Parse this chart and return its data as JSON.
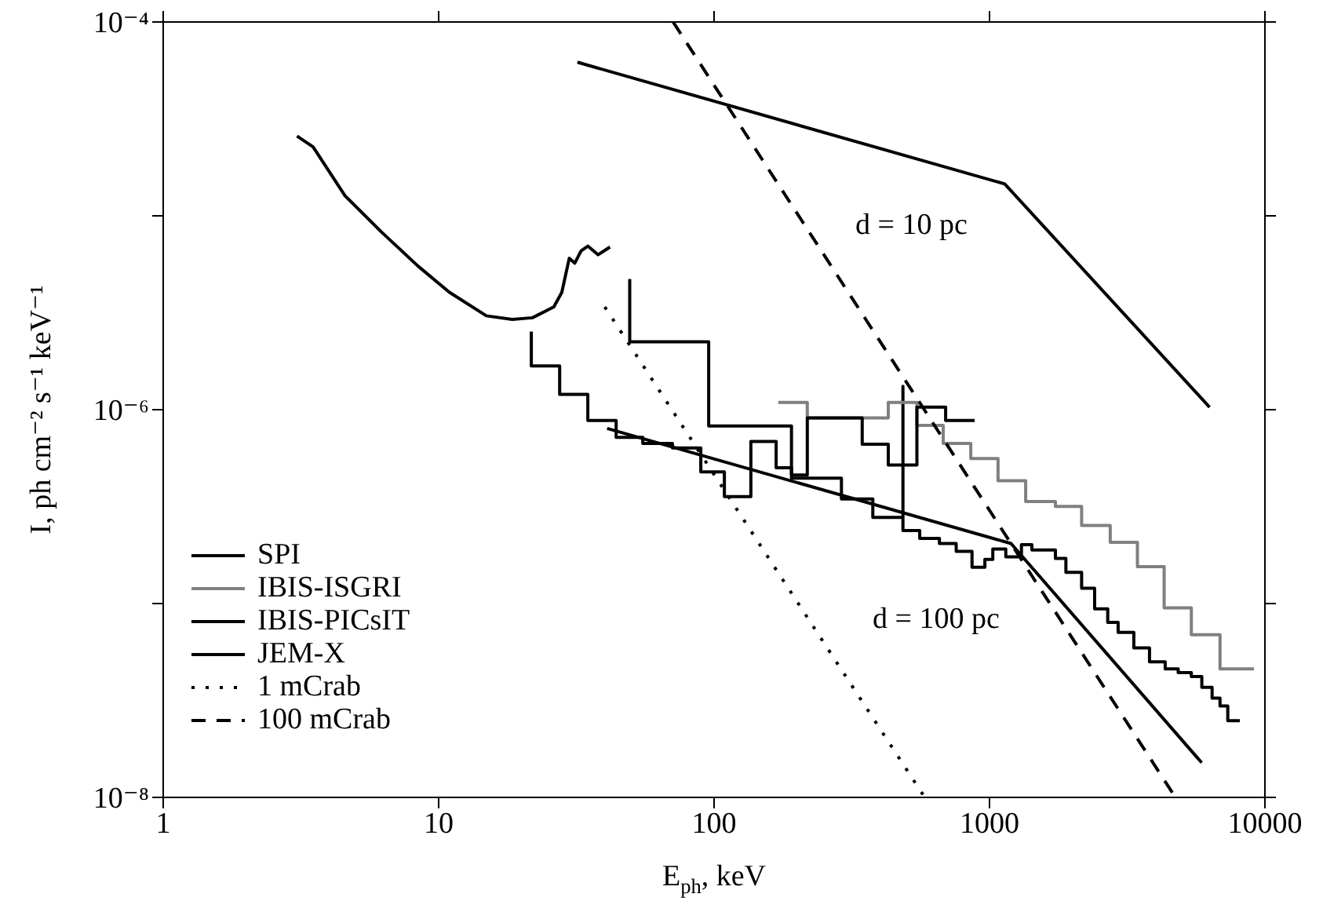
{
  "chart_data": {
    "type": "line",
    "xlabel": "E$_{ph}$, keV",
    "ylabel": "I, ph cm⁻² s⁻¹ keV⁻¹",
    "log": "xy",
    "xlim": [
      1,
      10000
    ],
    "xticks": [
      1,
      10,
      100,
      1000,
      10000
    ],
    "ylim": [
      1e-08,
      0.0001
    ],
    "yticks": [
      {
        "value": 1e-08,
        "label": "10⁻⁸"
      },
      {
        "value": 1e-07,
        "label": null
      },
      {
        "value": 1e-06,
        "label": "10⁻⁶"
      },
      {
        "value": 1e-05,
        "label": null
      },
      {
        "value": 0.0001,
        "label": "10⁻⁴"
      }
    ],
    "grid": false,
    "legend": "bottom left",
    "marker": "none",
    "annotations": [
      "d = 10 pc",
      "d = 100 pc"
    ],
    "series": [
      {
        "name": "SPI",
        "type": "step",
        "color": "#000000",
        "line_style": "solid",
        "x": [
          21.7,
          21.7,
          27.5,
          34.8,
          44.1,
          55.1,
          70.6,
          89.5,
          109,
          136,
          168,
          191,
          290,
          377,
          485,
          485,
          558,
          658,
          757,
          864,
          962,
          1028,
          1146,
          1306,
          1425,
          1735,
          1894,
          2160,
          2408,
          2687,
          2931,
          3342,
          3810,
          4344,
          4843,
          5405,
          5900,
          6430,
          6870,
          7330,
          8110
        ],
        "values": [
          2.53e-06,
          1.68e-06,
          1.2e-06,
          8.8e-07,
          7.2e-07,
          6.7e-07,
          6.35e-07,
          4.78e-07,
          3.56e-07,
          6.85e-07,
          5.02e-07,
          4.43e-07,
          3.46e-07,
          2.78e-07,
          1.32e-06,
          2.38e-07,
          2.17e-07,
          2.04e-07,
          1.86e-07,
          1.54e-07,
          1.69e-07,
          1.91e-07,
          1.74e-07,
          2.01e-07,
          1.89e-07,
          1.71e-07,
          1.45e-07,
          1.2e-07,
          9.4e-08,
          8e-08,
          7.1e-08,
          5.9e-08,
          5e-08,
          4.6e-08,
          4.4e-08,
          4.2e-08,
          3.7e-08,
          3.25e-08,
          2.96e-08,
          2.49e-08,
          2.49e-08
        ]
      },
      {
        "name": "IBIS-ISGRI",
        "type": "step",
        "color": "#808080",
        "line_style": "solid",
        "x": [
          171,
          218,
          429,
          545,
          679,
          855,
          1074,
          1353,
          1735,
          2160,
          2744,
          3444,
          4306,
          5405,
          6870,
          9120
        ],
        "values": [
          1.09e-06,
          9.06e-07,
          1.09e-06,
          8.3e-07,
          6.7e-07,
          5.6e-07,
          4.3e-07,
          3.36e-07,
          3.17e-07,
          2.53e-07,
          2.07e-07,
          1.55e-07,
          9.5e-08,
          6.9e-08,
          4.6e-08,
          4.6e-08
        ]
      },
      {
        "name": "IBIS-PICsIT",
        "type": "step",
        "color": "#000000",
        "line_style": "solid",
        "x": [
          49.4,
          49.4,
          95.6,
          191,
          218,
          345,
          429,
          545,
          693,
          883
        ],
        "values": [
          4.72e-06,
          2.24e-06,
          8.25e-07,
          4.6e-07,
          9.06e-07,
          6.64e-07,
          5.18e-07,
          1.03e-06,
          8.8e-07,
          8.8e-07
        ]
      },
      {
        "name": "JEM-X",
        "type": "line",
        "color": "#000000",
        "line_style": "solid",
        "x": [
          3.06,
          3.5,
          4.57,
          6.2,
          8.42,
          10.95,
          14.9,
          18.5,
          21.9,
          26.2,
          28,
          29.8,
          31.2,
          32.9,
          34.8,
          37.9,
          41.9
        ],
        "values": [
          2.58e-05,
          2.27e-05,
          1.27e-05,
          8.25e-06,
          5.5e-06,
          4.03e-06,
          3.05e-06,
          2.92e-06,
          2.98e-06,
          3.39e-06,
          4.03e-06,
          6.04e-06,
          5.7e-06,
          6.6e-06,
          6.98e-06,
          6.3e-06,
          6.9e-06
        ]
      },
      {
        "name": "1 mCrab",
        "type": "line",
        "color": "#000000",
        "line_style": "dotted",
        "x": [
          40.1,
          582
        ],
        "values": [
          3.39e-06,
          1e-08
        ]
      },
      {
        "name": "100 mCrab",
        "type": "line",
        "color": "#000000",
        "line_style": "dashed",
        "x": [
          71,
          4733
        ],
        "values": [
          0.0001,
          1e-08
        ]
      },
      {
        "type": "line",
        "color": "#000000",
        "line_style": "solid",
        "x": [
          31.9,
          1136,
          6296
        ],
        "values": [
          6.2e-05,
          1.46e-05,
          1.03e-06
        ]
      },
      {
        "type": "line",
        "color": "#000000",
        "line_style": "solid",
        "x": [
          40.9,
          1197,
          5893
        ],
        "values": [
          8e-07,
          2.04e-07,
          1.51e-08
        ]
      }
    ]
  }
}
